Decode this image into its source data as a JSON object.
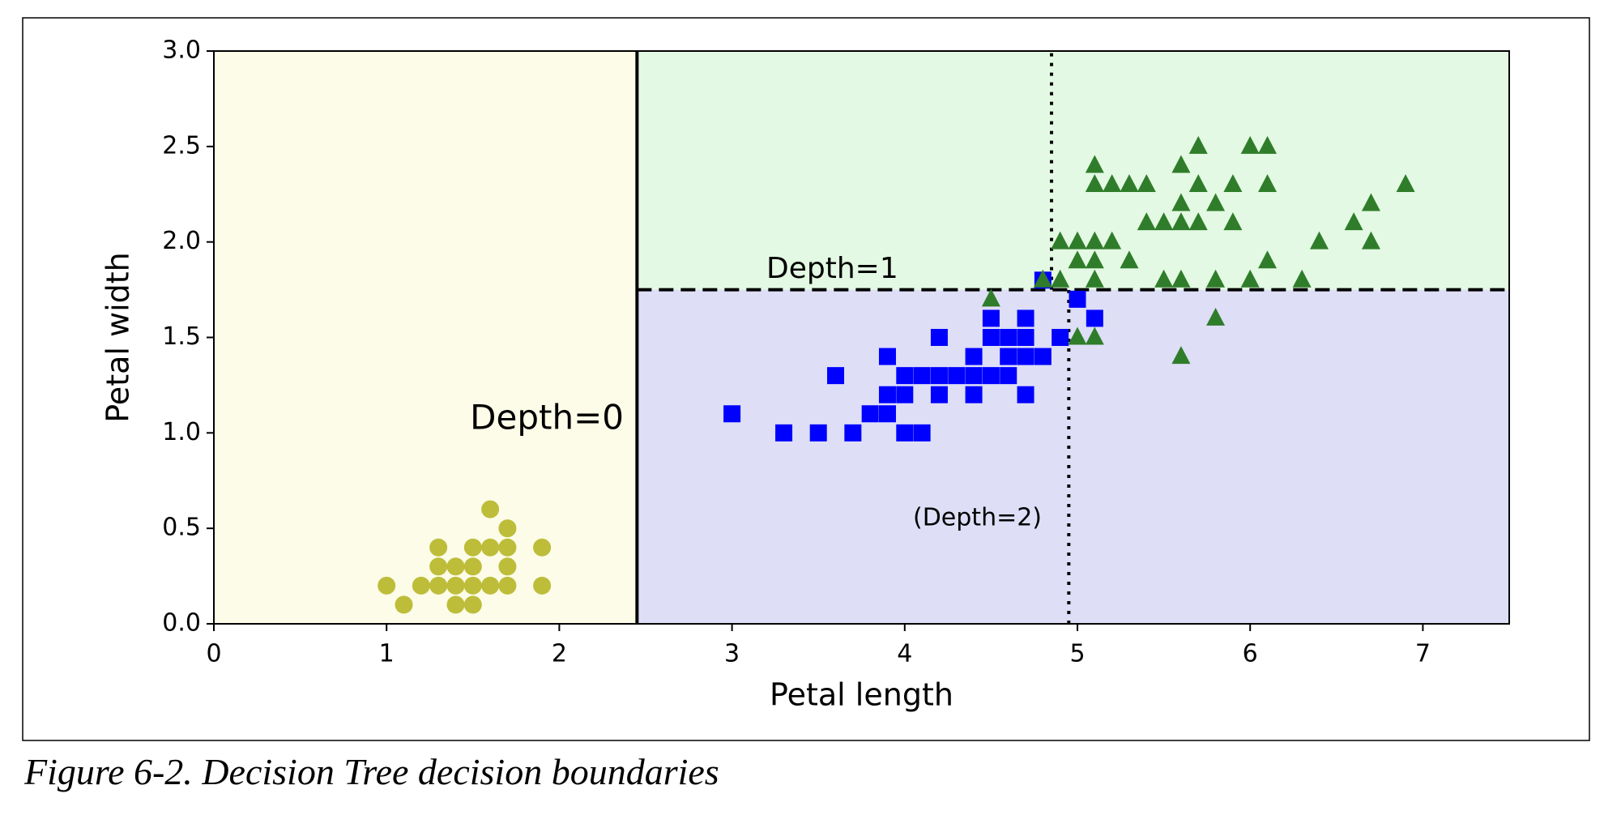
{
  "chart_data": {
    "type": "scatter",
    "xlabel": "Petal length",
    "ylabel": "Petal width",
    "caption": "Figure 6-2. Decision Tree decision boundaries",
    "xlim": [
      0,
      7.5
    ],
    "ylim": [
      0,
      3
    ],
    "xticks": [
      0,
      1,
      2,
      3,
      4,
      5,
      6,
      7
    ],
    "yticks": [
      {
        "value": 0,
        "label": "0.0"
      },
      {
        "value": 0.5,
        "label": "0.5"
      },
      {
        "value": 1,
        "label": "1.0"
      },
      {
        "value": 1.5,
        "label": "1.5"
      },
      {
        "value": 2,
        "label": "2.0"
      },
      {
        "value": 2.5,
        "label": "2.5"
      },
      {
        "value": 3,
        "label": "3.0"
      }
    ],
    "regions": [
      {
        "x": [
          0,
          2.45
        ],
        "y": [
          0,
          3
        ],
        "color": "#fcfce8"
      },
      {
        "x": [
          2.45,
          7.5
        ],
        "y": [
          1.75,
          3
        ],
        "color": "#e3f9e3"
      },
      {
        "x": [
          2.45,
          7.5
        ],
        "y": [
          0,
          1.75
        ],
        "color": "#dedef7"
      }
    ],
    "boundaries": [
      {
        "x": [
          2.45,
          2.45
        ],
        "y": [
          0,
          3
        ],
        "style": "solid"
      },
      {
        "x": [
          2.45,
          7.5
        ],
        "y": [
          1.75,
          1.75
        ],
        "style": "dashed"
      },
      {
        "x": [
          4.85,
          4.85
        ],
        "y": [
          1.75,
          3
        ],
        "style": "dotted"
      },
      {
        "x": [
          4.95,
          4.95
        ],
        "y": [
          0,
          1.75
        ],
        "style": "dotted"
      }
    ],
    "annotations": [
      "Depth=0",
      "Depth=1",
      "(Depth=2)"
    ],
    "series": [
      {
        "marker": "circle",
        "color": "#bdbd3a",
        "x": [
          1.0,
          1.1,
          1.2,
          1.3,
          1.3,
          1.3,
          1.4,
          1.4,
          1.4,
          1.5,
          1.5,
          1.5,
          1.5,
          1.6,
          1.6,
          1.6,
          1.7,
          1.7,
          1.7,
          1.7,
          1.9,
          1.9
        ],
        "y": [
          0.2,
          0.1,
          0.2,
          0.2,
          0.3,
          0.4,
          0.1,
          0.2,
          0.3,
          0.1,
          0.2,
          0.3,
          0.4,
          0.2,
          0.4,
          0.6,
          0.2,
          0.3,
          0.4,
          0.5,
          0.2,
          0.4
        ]
      },
      {
        "marker": "square",
        "color": "#0000ff",
        "x": [
          3.0,
          3.3,
          3.5,
          3.6,
          3.7,
          3.8,
          3.9,
          3.9,
          3.9,
          4.0,
          4.0,
          4.0,
          4.1,
          4.1,
          4.2,
          4.2,
          4.2,
          4.3,
          4.4,
          4.4,
          4.4,
          4.5,
          4.5,
          4.5,
          4.6,
          4.6,
          4.6,
          4.7,
          4.7,
          4.7,
          4.7,
          4.8,
          4.8,
          4.9,
          5.0,
          5.1
        ],
        "y": [
          1.1,
          1.0,
          1.0,
          1.3,
          1.0,
          1.1,
          1.1,
          1.2,
          1.4,
          1.0,
          1.2,
          1.3,
          1.0,
          1.3,
          1.2,
          1.3,
          1.5,
          1.3,
          1.2,
          1.3,
          1.4,
          1.3,
          1.5,
          1.6,
          1.3,
          1.4,
          1.5,
          1.2,
          1.4,
          1.5,
          1.6,
          1.4,
          1.8,
          1.5,
          1.7,
          1.6
        ]
      },
      {
        "marker": "triangle",
        "color": "#2f7d2a",
        "x": [
          4.5,
          4.8,
          4.9,
          5.0,
          5.1,
          5.6,
          5.8,
          4.9,
          5.0,
          5.1,
          5.0,
          5.1,
          5.1,
          5.2,
          5.3,
          5.1,
          5.1,
          5.2,
          5.3,
          5.4,
          5.4,
          5.5,
          5.5,
          5.6,
          5.6,
          5.6,
          5.6,
          5.7,
          5.7,
          5.7,
          5.8,
          5.8,
          5.9,
          5.9,
          6.0,
          6.0,
          6.1,
          6.1,
          6.1,
          6.3,
          6.4,
          6.6,
          6.7,
          6.7,
          6.9
        ],
        "y": [
          1.7,
          1.8,
          1.8,
          1.5,
          1.5,
          1.4,
          1.6,
          2.0,
          2.0,
          2.0,
          1.9,
          1.8,
          1.9,
          2.0,
          1.9,
          2.3,
          2.4,
          2.3,
          2.3,
          2.3,
          2.1,
          2.1,
          1.8,
          2.1,
          2.2,
          2.4,
          1.8,
          2.1,
          2.3,
          2.5,
          2.2,
          1.8,
          2.3,
          2.1,
          2.5,
          1.8,
          2.5,
          2.3,
          1.9,
          1.8,
          2.0,
          2.1,
          2.2,
          2.0,
          2.3
        ]
      }
    ]
  }
}
